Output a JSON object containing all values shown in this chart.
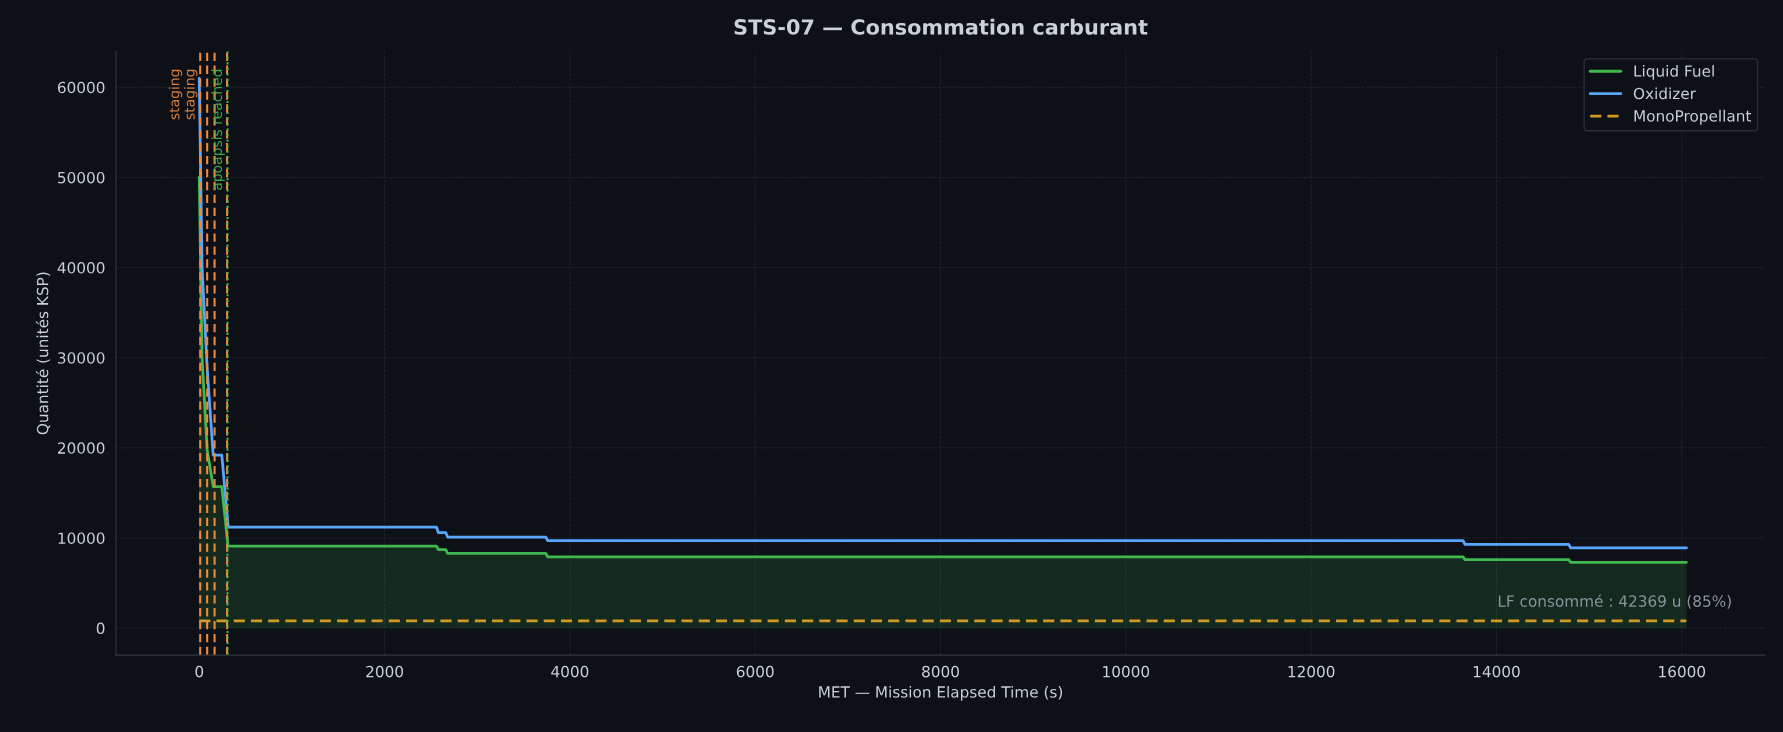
{
  "chart_data": {
    "type": "line",
    "title": "STS-07 — Consommation carburant",
    "xlabel": "MET — Mission Elapsed Time (s)",
    "ylabel": "Quantité (unités KSP)",
    "xlim": [
      -900,
      16900
    ],
    "ylim": [
      -3000,
      64000
    ],
    "xticks": [
      0,
      2000,
      4000,
      6000,
      8000,
      10000,
      12000,
      14000,
      16000
    ],
    "yticks": [
      0,
      10000,
      20000,
      30000,
      40000,
      50000,
      60000
    ],
    "grid": true,
    "legend": "top right",
    "series": [
      {
        "name": "Liquid Fuel",
        "type": "area",
        "color": "#3fb950",
        "line_style": "solid",
        "x": [
          0,
          30,
          85,
          150,
          243,
          310,
          2560,
          2580,
          2660,
          2680,
          3740,
          3760,
          13640,
          13660,
          14780,
          14800,
          16050
        ],
        "values": [
          50000,
          30000,
          19800,
          15700,
          15700,
          9100,
          9100,
          8700,
          8700,
          8300,
          8300,
          7900,
          7900,
          7600,
          7600,
          7300,
          7300
        ]
      },
      {
        "name": "Oxidizer",
        "type": "line",
        "color": "#58a6ff",
        "line_style": "solid",
        "x": [
          0,
          30,
          85,
          150,
          243,
          312,
          2560,
          2580,
          2660,
          2680,
          3740,
          3760,
          13640,
          13660,
          14780,
          14800,
          16050
        ],
        "values": [
          61000,
          40000,
          28800,
          19200,
          19200,
          11200,
          11200,
          10600,
          10600,
          10100,
          10100,
          9700,
          9700,
          9300,
          9300,
          8900,
          8900
        ]
      },
      {
        "name": "MonoPropellant",
        "type": "line",
        "color": "#d29922",
        "line_style": "dashed",
        "x": [
          0,
          16050
        ],
        "values": [
          800,
          800
        ]
      }
    ],
    "ref_lines": [
      {
        "axis": "x",
        "value": 10,
        "label": "staging",
        "color": "#f0883e",
        "line_style": "dashed"
      },
      {
        "axis": "x",
        "value": 85,
        "label": "staging",
        "color": "#f0883e",
        "line_style": "dashed"
      },
      {
        "axis": "x",
        "value": 165,
        "label": null,
        "color": "#f0883e",
        "line_style": "dashed"
      },
      {
        "axis": "x",
        "value": 300,
        "label": null,
        "color": "#f0883e",
        "line_style": "dashed"
      },
      {
        "axis": "x",
        "value": 305,
        "label": "apoapsis reached",
        "color": "#3fb950",
        "line_style": "dotted"
      }
    ],
    "annotations": [
      "LF consommé : 42369 u (85%)"
    ]
  }
}
